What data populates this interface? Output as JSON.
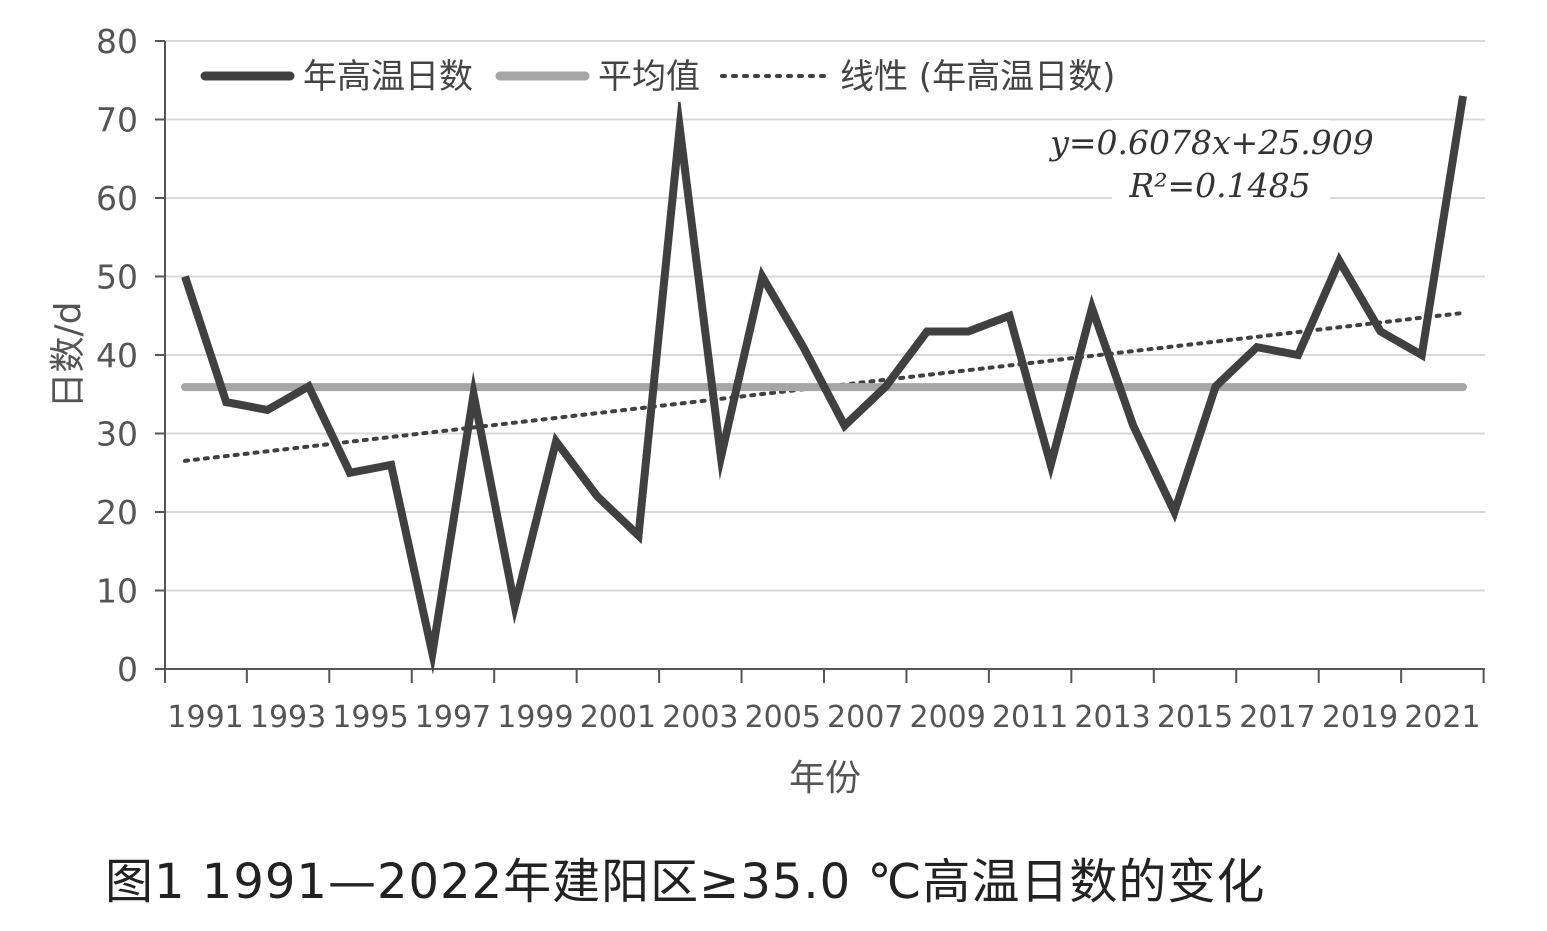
{
  "caption": "图1  1991—2022年建阳区≥35.0 ℃高温日数的变化",
  "chart_data": {
    "type": "line",
    "xlabel": "年份",
    "ylabel": "日数/d",
    "ylim": [
      0,
      80
    ],
    "yticks": [
      "0",
      "10",
      "20",
      "30",
      "40",
      "50",
      "60",
      "70",
      "80"
    ],
    "xtick_labels": [
      "1991",
      "1993",
      "1995",
      "1997",
      "1999",
      "2001",
      "2003",
      "2005",
      "2007",
      "2009",
      "2011",
      "2013",
      "2015",
      "2017",
      "2019",
      "2021"
    ],
    "grid": true,
    "legend_position": "top",
    "x": [
      1991,
      1992,
      1993,
      1994,
      1995,
      1996,
      1997,
      1998,
      1999,
      2000,
      2001,
      2002,
      2003,
      2004,
      2005,
      2006,
      2007,
      2008,
      2009,
      2010,
      2011,
      2012,
      2013,
      2014,
      2015,
      2016,
      2017,
      2018,
      2019,
      2020,
      2021,
      2022
    ],
    "series": [
      {
        "name": "年高温日数",
        "color": "#404040",
        "values": [
          50,
          34,
          33,
          36,
          25,
          26,
          2,
          35,
          8,
          29,
          22,
          17,
          69,
          27,
          50,
          41,
          31,
          36,
          43,
          43,
          45,
          26,
          46,
          31,
          20,
          36,
          41,
          40,
          52,
          43,
          40,
          73
        ]
      },
      {
        "name": "平均值",
        "color": "#a6a6a6",
        "values": [
          35.9,
          35.9,
          35.9,
          35.9,
          35.9,
          35.9,
          35.9,
          35.9,
          35.9,
          35.9,
          35.9,
          35.9,
          35.9,
          35.9,
          35.9,
          35.9,
          35.9,
          35.9,
          35.9,
          35.9,
          35.9,
          35.9,
          35.9,
          35.9,
          35.9,
          35.9,
          35.9,
          35.9,
          35.9,
          35.9,
          35.9,
          35.9
        ]
      },
      {
        "name": "线性 (年高温日数)",
        "color": "#404040",
        "style": "dotted",
        "slope": 0.6078,
        "intercept": 25.909
      }
    ],
    "annotation": {
      "equation": "y=0.6078x+25.909",
      "r2": "R²=0.1485"
    }
  }
}
